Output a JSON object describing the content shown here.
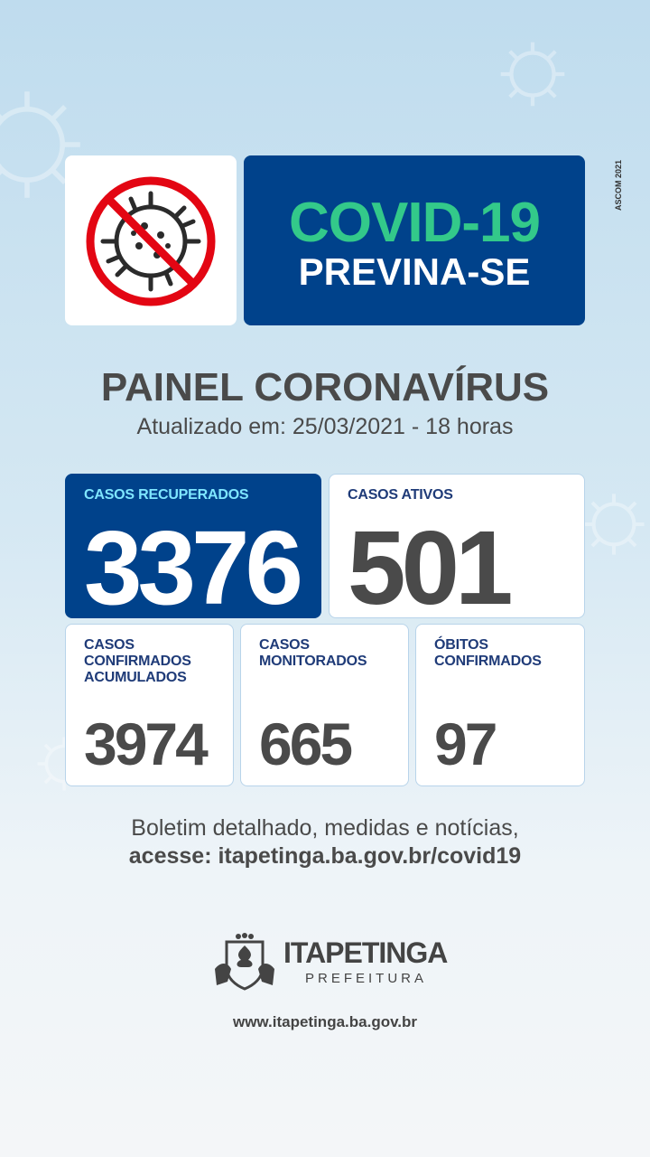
{
  "header": {
    "title": "COVID-19",
    "subtitle": "PREVINA-SE",
    "credit": "ASCOM 2021",
    "icon": "no-virus-icon"
  },
  "panel": {
    "title": "PAINEL CORONAVÍRUS",
    "updated": "Atualizado em: 25/03/2021 - 18 horas"
  },
  "stats": {
    "recovered": {
      "label": "CASOS RECUPERADOS",
      "value": "3376"
    },
    "active": {
      "label": "CASOS ATIVOS",
      "value": "501"
    },
    "confirmed": {
      "label": "CASOS\nCONFIRMADOS\nACUMULADOS",
      "value": "3974"
    },
    "monitored": {
      "label": "CASOS\nMONITORADOS",
      "value": "665"
    },
    "deaths": {
      "label": "ÓBITOS\nCONFIRMADOS",
      "value": "97"
    }
  },
  "footer": {
    "line1": "Boletim detalhado, medidas e notícias,",
    "line2": "acesse: itapetinga.ba.gov.br/covid19",
    "logo_name": "ITAPETINGA",
    "logo_sub": "PREFEITURA",
    "website": "www.itapetinga.ba.gov.br"
  },
  "colors": {
    "navy": "#00428b",
    "green": "#33c98a",
    "cyan": "#7fe6ff",
    "red": "#e30613",
    "gray": "#4a4a4a"
  }
}
